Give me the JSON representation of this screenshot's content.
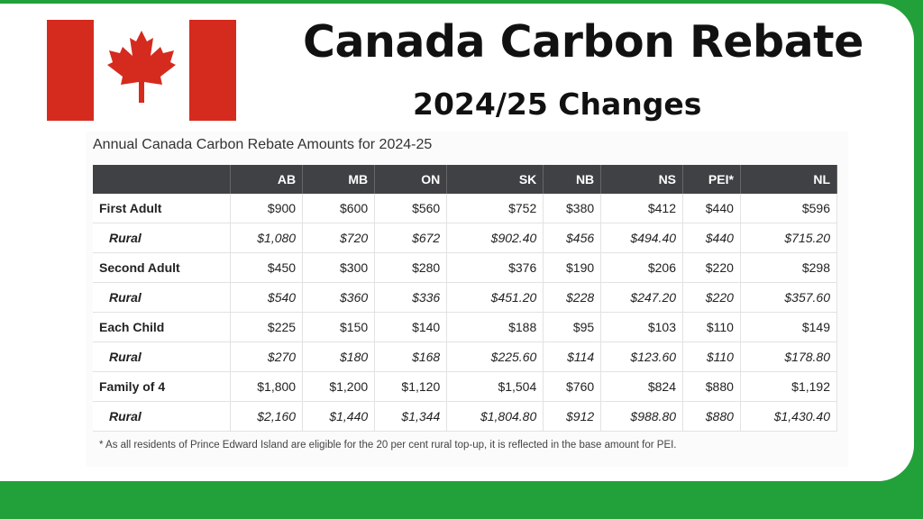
{
  "title": "Canada Carbon Rebate",
  "subtitle": "2024/25 Changes",
  "table": {
    "heading": "Annual Canada Carbon Rebate Amounts for 2024-25",
    "columns": [
      "",
      "AB",
      "MB",
      "ON",
      "SK",
      "NB",
      "NS",
      "PEI*",
      "NL"
    ],
    "rows": [
      {
        "label": "First Adult",
        "rural": false,
        "values": [
          "$900",
          "$600",
          "$560",
          "$752",
          "$380",
          "$412",
          "$440",
          "$596"
        ]
      },
      {
        "label": "Rural",
        "rural": true,
        "values": [
          "$1,080",
          "$720",
          "$672",
          "$902.40",
          "$456",
          "$494.40",
          "$440",
          "$715.20"
        ]
      },
      {
        "label": "Second Adult",
        "rural": false,
        "values": [
          "$450",
          "$300",
          "$280",
          "$376",
          "$190",
          "$206",
          "$220",
          "$298"
        ]
      },
      {
        "label": "Rural",
        "rural": true,
        "values": [
          "$540",
          "$360",
          "$336",
          "$451.20",
          "$228",
          "$247.20",
          "$220",
          "$357.60"
        ]
      },
      {
        "label": "Each Child",
        "rural": false,
        "values": [
          "$225",
          "$150",
          "$140",
          "$188",
          "$95",
          "$103",
          "$110",
          "$149"
        ]
      },
      {
        "label": "Rural",
        "rural": true,
        "values": [
          "$270",
          "$180",
          "$168",
          "$225.60",
          "$114",
          "$123.60",
          "$110",
          "$178.80"
        ]
      },
      {
        "label": "Family of 4",
        "rural": false,
        "values": [
          "$1,800",
          "$1,200",
          "$1,120",
          "$1,504",
          "$760",
          "$824",
          "$880",
          "$1,192"
        ]
      },
      {
        "label": "Rural",
        "rural": true,
        "values": [
          "$2,160",
          "$1,440",
          "$1,344",
          "$1,804.80",
          "$912",
          "$988.80",
          "$880",
          "$1,430.40"
        ]
      }
    ],
    "footnote": "* As all residents of Prince Edward Island are eligible for the 20 per cent rural top-up, it is reflected in the base amount for PEI."
  },
  "colors": {
    "background_green": "#22a03a",
    "flag_red": "#d52b1e",
    "header_dark": "#3f4145"
  },
  "icons": {
    "flag": "canada-flag-icon"
  }
}
